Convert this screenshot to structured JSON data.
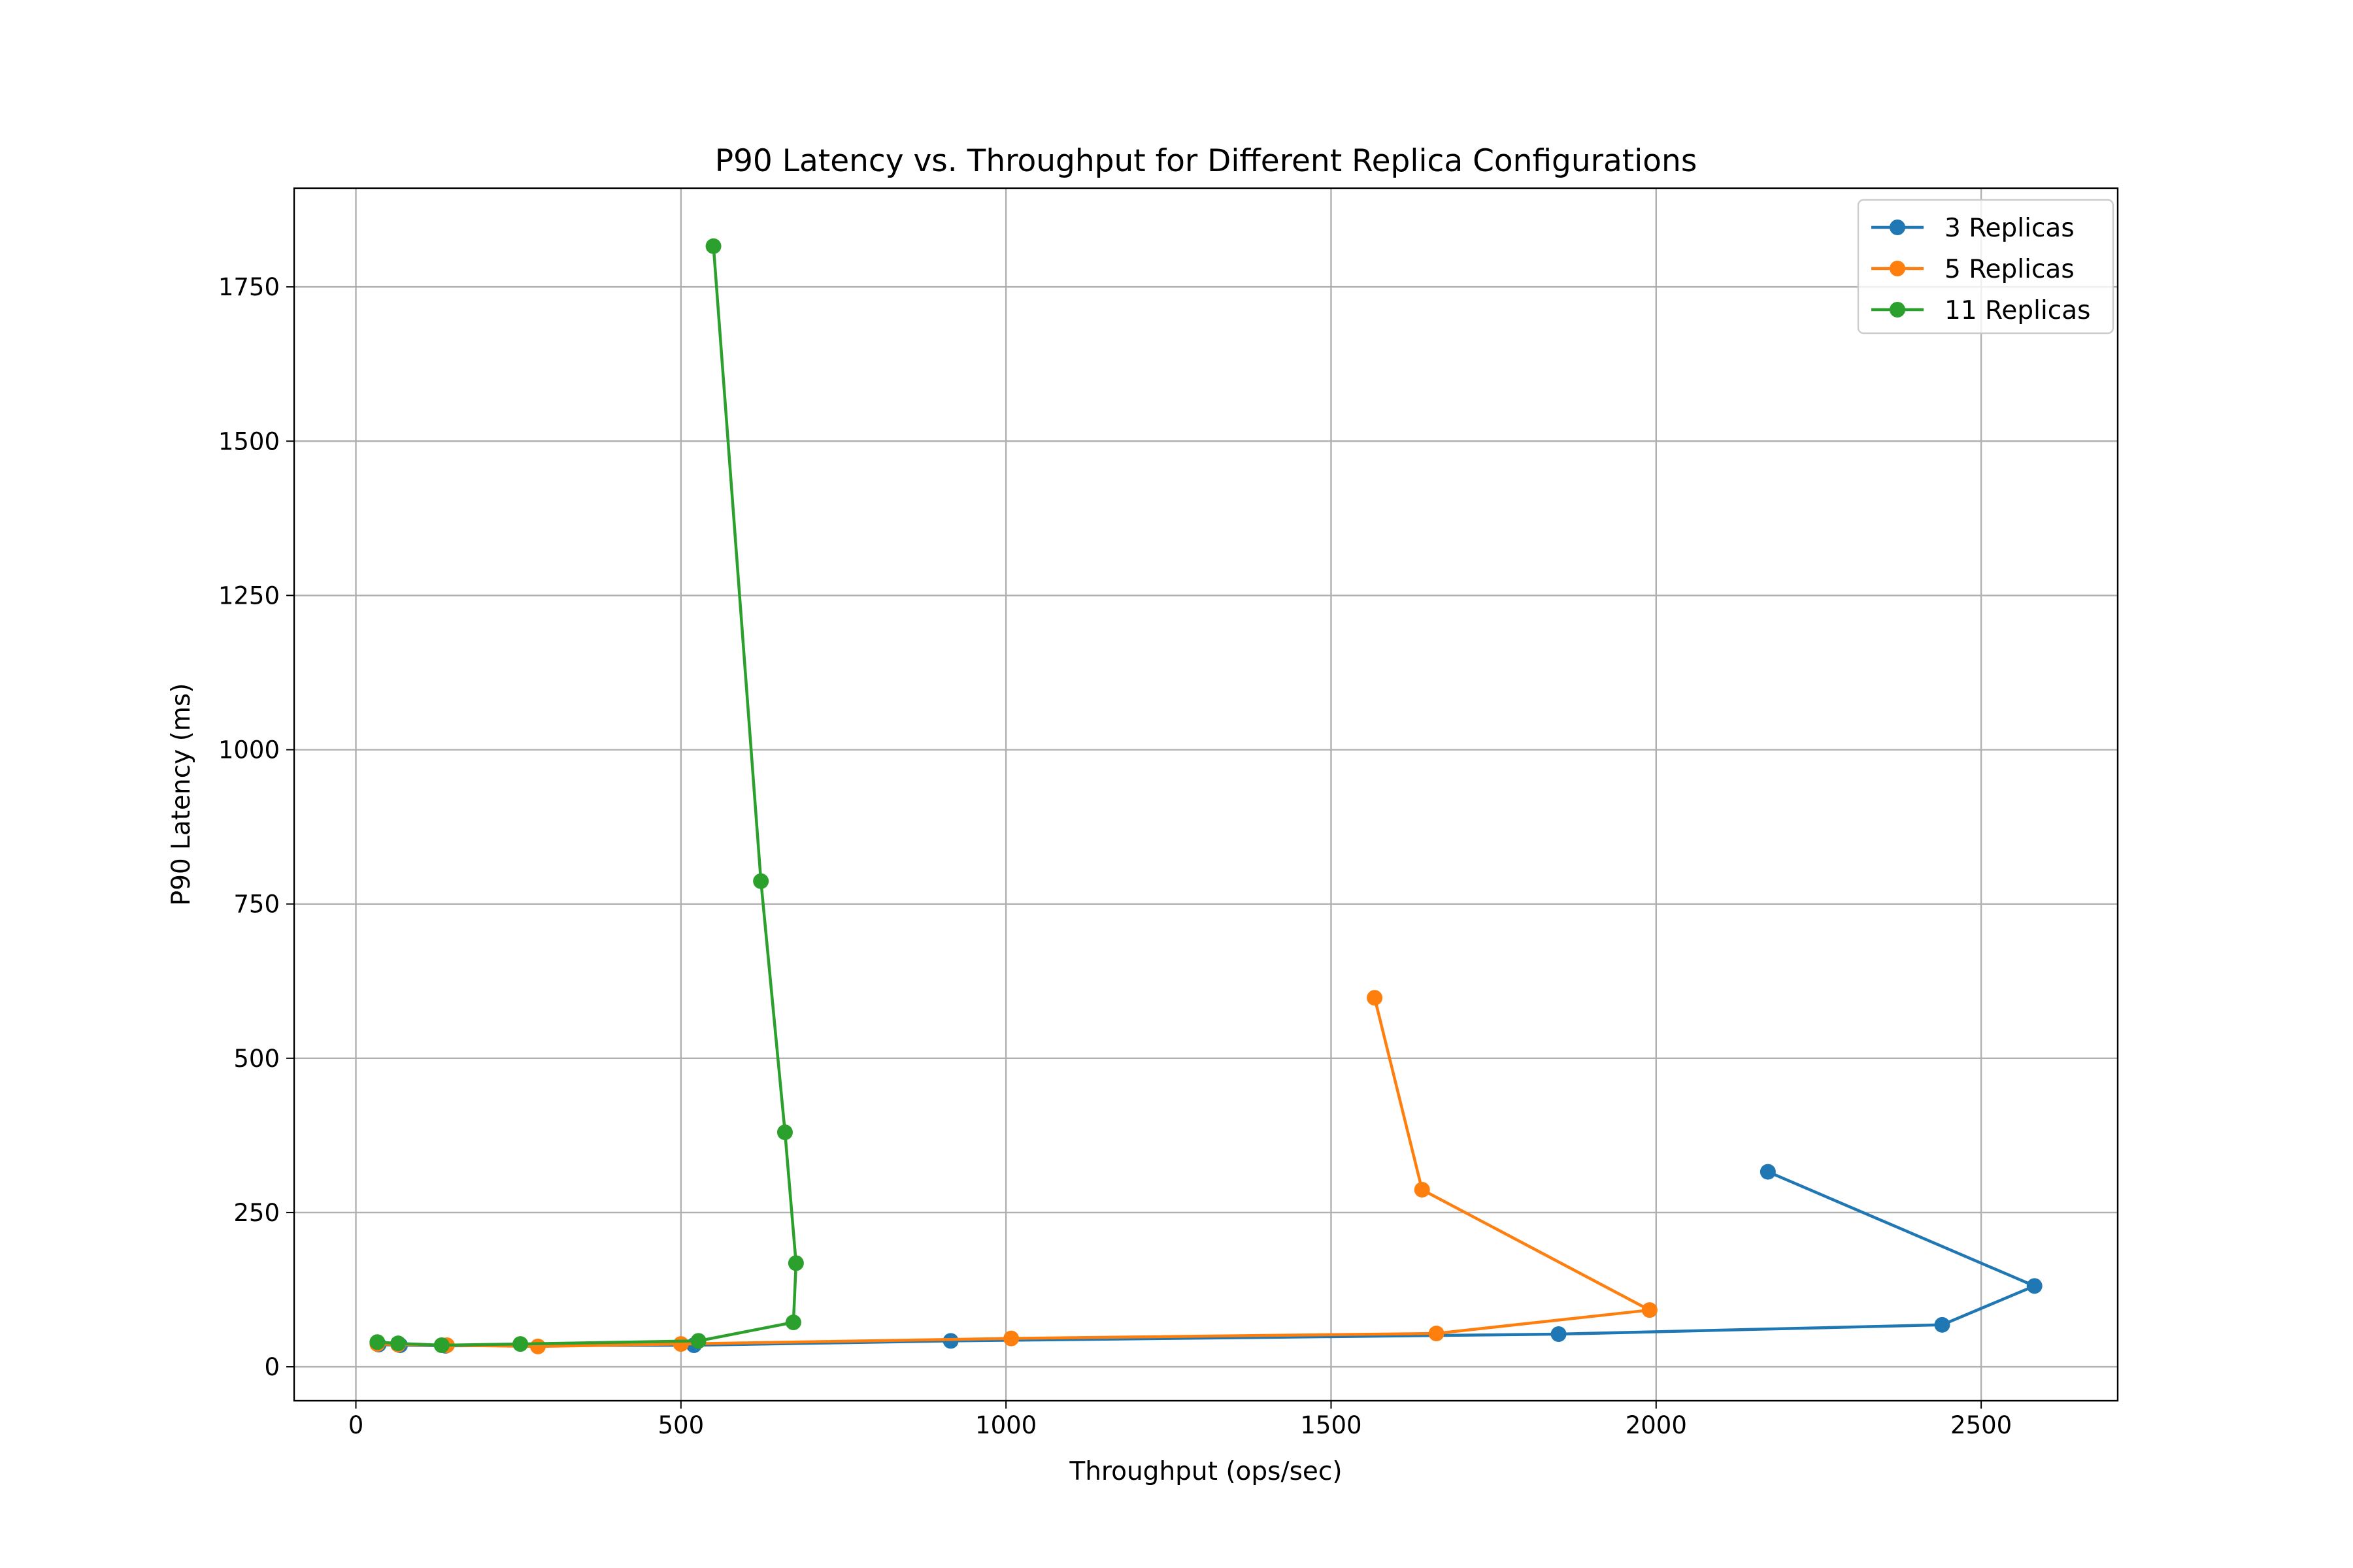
{
  "chart_data": {
    "type": "line",
    "title": "P90 Latency vs. Throughput for Different Replica Configurations",
    "xlabel": "Throughput (ops/sec)",
    "ylabel": "P90 Latency (ms)",
    "xlim": [
      -95,
      2710
    ],
    "ylim": [
      -55,
      1910
    ],
    "xticks": [
      0,
      500,
      1000,
      1500,
      2000,
      2500
    ],
    "yticks": [
      0,
      250,
      500,
      750,
      1000,
      1250,
      1500,
      1750
    ],
    "grid": true,
    "legend_position": "top-right",
    "series": [
      {
        "name": "3 Replicas",
        "color": "#1f77b4",
        "x": [
          35,
          68,
          138,
          520,
          915,
          1850,
          2440,
          2582,
          2172
        ],
        "y": [
          36,
          35,
          34,
          35,
          42,
          53,
          68,
          131,
          316
        ]
      },
      {
        "name": "5 Replicas",
        "color": "#ff7f0e",
        "x": [
          33,
          65,
          140,
          280,
          500,
          1008,
          1662,
          1990,
          1640,
          1567
        ],
        "y": [
          37,
          36,
          35,
          33,
          37,
          46,
          54,
          92,
          287,
          598
        ]
      },
      {
        "name": "11 Replicas",
        "color": "#2ca02c",
        "x": [
          33,
          65,
          132,
          253,
          527,
          673,
          677,
          660,
          623,
          550
        ],
        "y": [
          40,
          38,
          35,
          37,
          42,
          72,
          168,
          380,
          787,
          1816
        ]
      }
    ]
  }
}
